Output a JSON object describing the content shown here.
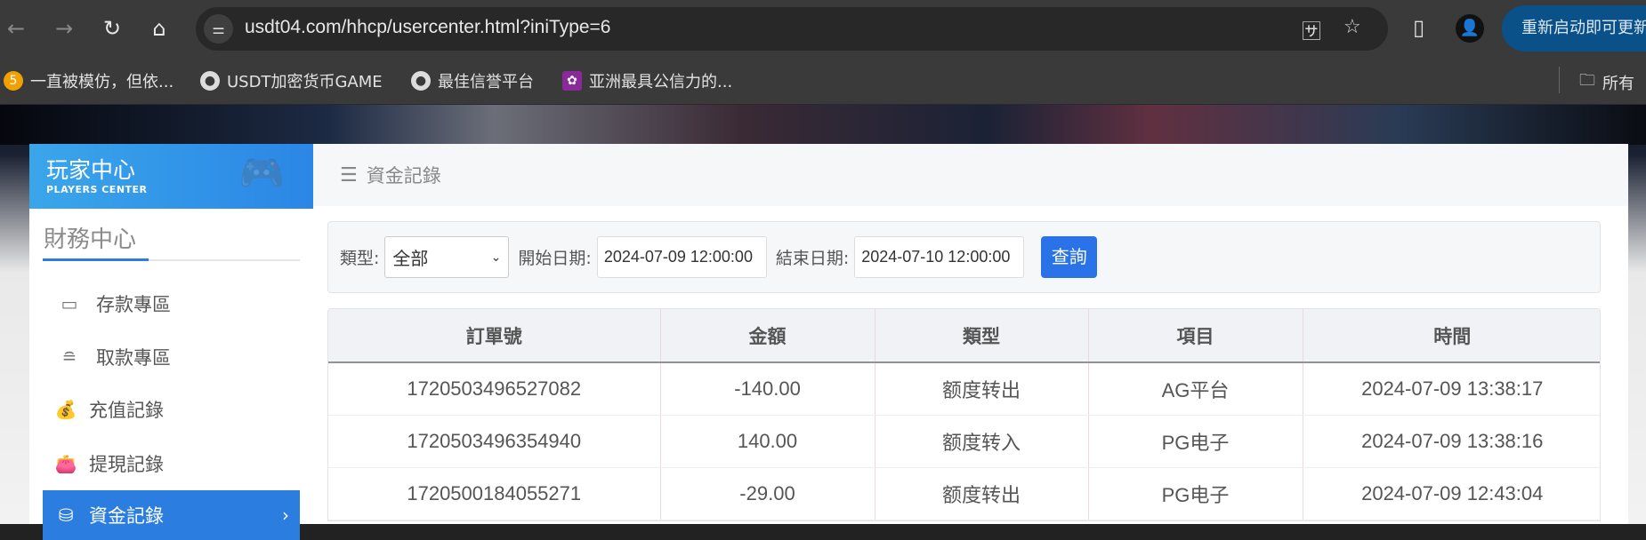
{
  "browser": {
    "url": "usdt04.com/hhcp/usercenter.html?iniType=6",
    "update_button": "重新启动即可更新",
    "bookmarks": [
      {
        "label": "一直被模仿，但依...",
        "icon": "five-logo-icon"
      },
      {
        "label": "USDT加密货币GAME",
        "icon": "globe-icon"
      },
      {
        "label": "最佳信誉平台",
        "icon": "globe-icon"
      },
      {
        "label": "亚洲最具公信力的...",
        "icon": "flower-logo-icon"
      }
    ],
    "all_bookmarks": "所有"
  },
  "sidebar": {
    "header_title": "玩家中心",
    "header_subtitle": "PLAYERS CENTER",
    "section_title": "財務中心",
    "items": [
      {
        "label": "存款專區",
        "icon": "card-icon",
        "active": false
      },
      {
        "label": "取款專區",
        "icon": "hand-cash-icon",
        "active": false
      },
      {
        "label": "充值記錄",
        "icon": "money-bag-icon",
        "active": false
      },
      {
        "label": "提現記錄",
        "icon": "wallet-icon",
        "active": false
      },
      {
        "label": "資金記錄",
        "icon": "fund-icon",
        "active": true
      }
    ]
  },
  "main": {
    "breadcrumb": "資金記錄",
    "filter": {
      "type_label": "類型:",
      "type_value": "全部",
      "start_label": "開始日期:",
      "start_value": "2024-07-09 12:00:00",
      "end_label": "結束日期:",
      "end_value": "2024-07-10 12:00:00",
      "query_button": "查詢"
    },
    "table": {
      "headers": [
        "訂單號",
        "金額",
        "類型",
        "項目",
        "時間"
      ],
      "rows": [
        [
          "1720503496527082",
          "-140.00",
          "额度转出",
          "AG平台",
          "2024-07-09 13:38:17"
        ],
        [
          "1720503496354940",
          "140.00",
          "额度转入",
          "PG电子",
          "2024-07-09 13:38:16"
        ],
        [
          "1720500184055271",
          "-29.00",
          "额度转出",
          "PG电子",
          "2024-07-09 12:43:04"
        ]
      ]
    }
  },
  "colors": {
    "accent": "#2b7de0",
    "button": "#2a72e8",
    "update": "#0a5089"
  }
}
